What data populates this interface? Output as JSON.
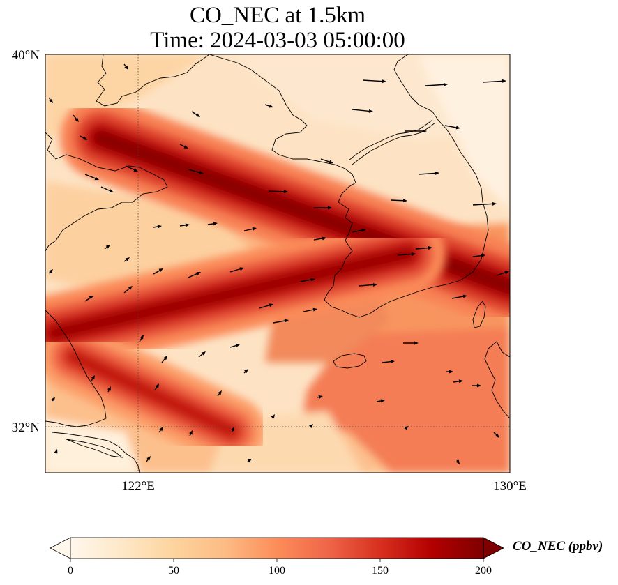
{
  "title": {
    "line1": "CO_NEC at 1.5km",
    "line2": "Time: 2024-03-03 05:00:00"
  },
  "map": {
    "lat_range": [
      31,
      40
    ],
    "lon_range": [
      120,
      130
    ],
    "lat_ticks": [
      {
        "value": 40,
        "label": "40°N"
      },
      {
        "value": 32,
        "label": "32°N"
      }
    ],
    "lon_ticks": [
      {
        "value": 122,
        "label": "122°E"
      },
      {
        "value": 130,
        "label": "130°E"
      }
    ],
    "gridlines": "dotted at 122°E and 32°N",
    "field": "CO_NEC concentration with wind vectors",
    "plumes": [
      {
        "name": "northern band",
        "from": [
          121.2,
          38.2
        ],
        "to": [
          130.0,
          35.0
        ],
        "peak_ppbv": 195
      },
      {
        "name": "central band",
        "from": [
          120.2,
          34.0
        ],
        "to": [
          127.8,
          35.7
        ],
        "peak_ppbv": 185
      },
      {
        "name": "southern band",
        "from": [
          120.6,
          33.5
        ],
        "to": [
          124.0,
          31.9
        ],
        "peak_ppbv": 165
      }
    ]
  },
  "colorbar": {
    "label": "CO_NEC (ppbv)",
    "min": 0,
    "max": 200,
    "ticks": [
      {
        "value": 0,
        "label": "0"
      },
      {
        "value": 50,
        "label": "50"
      },
      {
        "value": 100,
        "label": "100"
      },
      {
        "value": 150,
        "label": "150"
      },
      {
        "value": 200,
        "label": "200"
      }
    ],
    "colormap": "OrRd",
    "colors": [
      "#fff7ec",
      "#fee8c8",
      "#fdd49e",
      "#fdbb84",
      "#fc8d59",
      "#ef6548",
      "#d7301f",
      "#b30000",
      "#7f0000"
    ],
    "extend": "both"
  }
}
